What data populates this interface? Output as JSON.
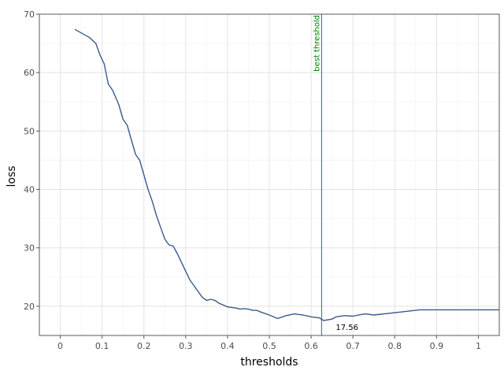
{
  "chart_data": {
    "type": "line",
    "xlabel": "thresholds",
    "ylabel": "loss",
    "xlim": [
      -0.05,
      1.05
    ],
    "ylim": [
      15,
      70
    ],
    "x_ticks": [
      0,
      0.1,
      0.2,
      0.3,
      0.4,
      0.5,
      0.6,
      0.7,
      0.8,
      0.9,
      1
    ],
    "x_tick_labels": [
      "0",
      "0.1",
      "0.2",
      "0.3",
      "0.4",
      "0.5",
      "0.6",
      "0.7",
      "0.8",
      "0.9",
      "1"
    ],
    "y_ticks": [
      20,
      30,
      40,
      50,
      60,
      70
    ],
    "y_tick_labels": [
      "20",
      "30",
      "40",
      "50",
      "60",
      "70"
    ],
    "grid": true,
    "series": [
      {
        "color": "#3a5a8c",
        "x": [
          0.035,
          0.07,
          0.085,
          0.095,
          0.105,
          0.115,
          0.125,
          0.14,
          0.15,
          0.16,
          0.17,
          0.18,
          0.19,
          0.2,
          0.21,
          0.22,
          0.23,
          0.24,
          0.25,
          0.26,
          0.27,
          0.28,
          0.29,
          0.3,
          0.31,
          0.32,
          0.33,
          0.34,
          0.35,
          0.36,
          0.37,
          0.38,
          0.39,
          0.4,
          0.41,
          0.42,
          0.43,
          0.44,
          0.45,
          0.46,
          0.47,
          0.48,
          0.5,
          0.52,
          0.54,
          0.56,
          0.58,
          0.6,
          0.62,
          0.63,
          0.65,
          0.66,
          0.68,
          0.7,
          0.72,
          0.73,
          0.75,
          0.8,
          0.86,
          1.05
        ],
        "y": [
          67.4,
          66.0,
          65.0,
          63.0,
          61.5,
          58.0,
          57.0,
          54.5,
          52.0,
          51.0,
          48.5,
          46.0,
          45.0,
          42.5,
          40.0,
          38.0,
          35.5,
          33.5,
          31.5,
          30.5,
          30.3,
          29.0,
          27.5,
          26.0,
          24.5,
          23.5,
          22.5,
          21.5,
          21.0,
          21.2,
          21.0,
          20.5,
          20.2,
          19.9,
          19.8,
          19.7,
          19.5,
          19.6,
          19.5,
          19.3,
          19.3,
          19.0,
          18.5,
          17.9,
          18.4,
          18.7,
          18.5,
          18.2,
          18.0,
          17.56,
          17.8,
          18.2,
          18.4,
          18.3,
          18.6,
          18.7,
          18.5,
          18.9,
          19.4,
          19.4
        ]
      }
    ],
    "vline": {
      "x": 0.625,
      "label": "best threshold",
      "label_color": "#008000",
      "line_color": "#3a5a8c"
    },
    "point_annotation": {
      "x": 0.625,
      "y": 17.56,
      "label": "17.56"
    }
  }
}
